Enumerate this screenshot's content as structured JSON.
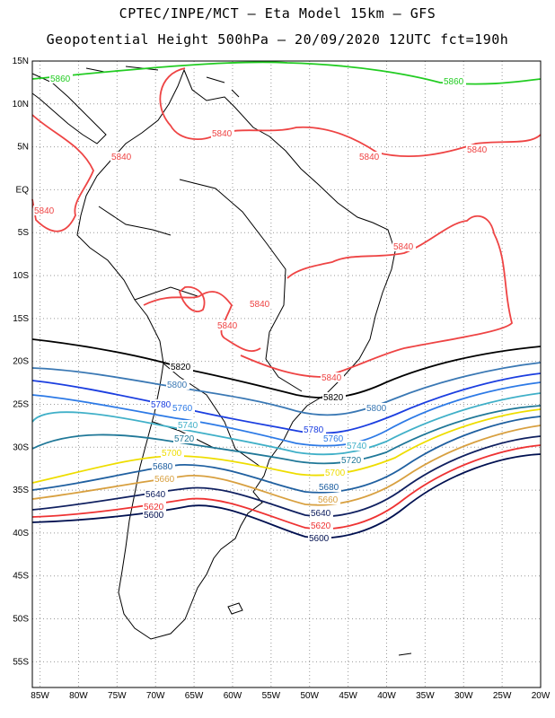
{
  "header": {
    "line1": "CPTEC/INPE/MCT –  Eta Model 15km – GFS",
    "line2": "Geopotential Height 500hPa – 20/09/2020 12UTC fct=190h"
  },
  "axes": {
    "lat_labels": [
      "15N",
      "10N",
      "5N",
      "EQ",
      "5S",
      "10S",
      "15S",
      "20S",
      "25S",
      "30S",
      "35S",
      "40S",
      "45S",
      "50S",
      "55S"
    ],
    "lon_labels": [
      "85W",
      "80W",
      "75W",
      "70W",
      "65W",
      "60W",
      "55W",
      "50W",
      "45W",
      "40W",
      "35W",
      "30W",
      "25W",
      "20W"
    ],
    "lat_range": [
      15,
      -58
    ],
    "lon_range": [
      -86,
      -20
    ],
    "grid": "dotted"
  },
  "contours": [
    {
      "value": 5860,
      "color": "#22cc22",
      "labels": [
        "5860",
        "5860"
      ]
    },
    {
      "value": 5840,
      "color": "#ee4444",
      "labels": [
        "5840",
        "5840",
        "5840",
        "5840",
        "5840",
        "5840",
        "5840",
        "5840",
        "5840"
      ]
    },
    {
      "value": 5820,
      "color": "#000000",
      "labels": [
        "5820",
        "5820"
      ]
    },
    {
      "value": 5800,
      "color": "#3a78b4",
      "labels": [
        "5800",
        "5800"
      ]
    },
    {
      "value": 5780,
      "color": "#1b3ee0",
      "labels": [
        "5780",
        "5780"
      ]
    },
    {
      "value": 5760,
      "color": "#2d7ae6",
      "labels": [
        "5760",
        "5760"
      ]
    },
    {
      "value": 5740,
      "color": "#40b0c8",
      "labels": [
        "5740",
        "5740"
      ]
    },
    {
      "value": 5720,
      "color": "#207898",
      "labels": [
        "5720",
        "5720"
      ]
    },
    {
      "value": 5700,
      "color": "#eedd00",
      "labels": [
        "5700",
        "5700"
      ]
    },
    {
      "value": 5680,
      "color": "#2060a0",
      "labels": [
        "5680",
        "5680"
      ]
    },
    {
      "value": 5660,
      "color": "#d8a040",
      "labels": [
        "5660",
        "5660"
      ]
    },
    {
      "value": 5640,
      "color": "#102060",
      "labels": [
        "5640",
        "5640"
      ]
    },
    {
      "value": 5620,
      "color": "#ee3333",
      "labels": [
        "5620",
        "5620"
      ]
    },
    {
      "value": 5600,
      "color": "#001050",
      "labels": [
        "5600",
        "5600"
      ]
    }
  ],
  "colors": {
    "coastline": "#000000",
    "frame": "#000000",
    "grid": "#999999"
  }
}
